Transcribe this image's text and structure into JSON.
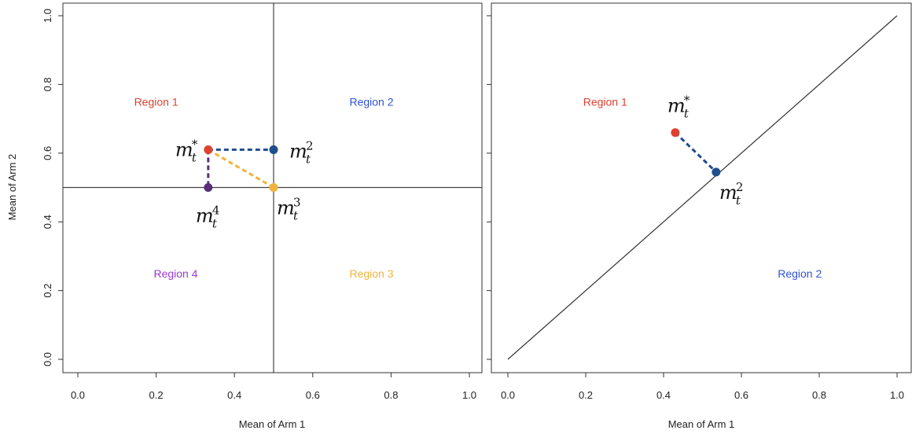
{
  "colors": {
    "red": "#e0402f",
    "blue": "#1f4e8c",
    "gold": "#f0b43c",
    "purple": "#5a2e78",
    "region1": "#e0402f",
    "region2": "#2f52d6",
    "region3": "#f0b43c",
    "region4": "#9b3bd6",
    "axis": "#333333"
  },
  "chart_data": [
    {
      "type": "scatter",
      "xlabel": "Mean of Arm 1",
      "ylabel": "Mean of Arm 2",
      "xlim": [
        0,
        1
      ],
      "ylim": [
        0,
        1
      ],
      "xticks": [
        "0.0",
        "0.2",
        "0.4",
        "0.6",
        "0.8",
        "1.0"
      ],
      "yticks": [
        "0.0",
        "0.2",
        "0.4",
        "0.6",
        "0.8",
        "1.0"
      ],
      "boundaries": [
        {
          "kind": "vline",
          "x": 0.5
        },
        {
          "kind": "hline",
          "y": 0.5
        }
      ],
      "regions": [
        {
          "label": "Region 1",
          "x": 0.2,
          "y": 0.75,
          "color": "region1"
        },
        {
          "label": "Region 2",
          "x": 0.75,
          "y": 0.75,
          "color": "region2"
        },
        {
          "label": "Region 4",
          "x": 0.25,
          "y": 0.25,
          "color": "region4"
        },
        {
          "label": "Region 3",
          "x": 0.75,
          "y": 0.25,
          "color": "region3"
        }
      ],
      "points": [
        {
          "id": "m_star",
          "x": 0.333,
          "y": 0.61,
          "color": "red",
          "sup": "*",
          "labelPos": "left"
        },
        {
          "id": "m2",
          "x": 0.5,
          "y": 0.61,
          "color": "blue",
          "sup": "2",
          "labelPos": "right"
        },
        {
          "id": "m3",
          "x": 0.5,
          "y": 0.5,
          "color": "gold",
          "sup": "3",
          "labelPos": "below-right"
        },
        {
          "id": "m4",
          "x": 0.333,
          "y": 0.5,
          "color": "purple",
          "sup": "4",
          "labelPos": "below"
        }
      ],
      "segments": [
        {
          "from": "m_star",
          "to": "m2",
          "color": "blue"
        },
        {
          "from": "m_star",
          "to": "m3",
          "color": "gold"
        },
        {
          "from": "m_star",
          "to": "m4",
          "color": "purple"
        }
      ]
    },
    {
      "type": "scatter",
      "xlabel": "Mean of Arm 1",
      "ylabel": "",
      "xlim": [
        0,
        1
      ],
      "ylim": [
        0,
        1
      ],
      "xticks": [
        "0.0",
        "0.2",
        "0.4",
        "0.6",
        "0.8",
        "1.0"
      ],
      "boundaries": [
        {
          "kind": "diag",
          "x1": 0,
          "y1": 0,
          "x2": 1,
          "y2": 1
        }
      ],
      "regions": [
        {
          "label": "Region 1",
          "x": 0.25,
          "y": 0.75,
          "color": "region1"
        },
        {
          "label": "Region 2",
          "x": 0.75,
          "y": 0.25,
          "color": "region2"
        }
      ],
      "points": [
        {
          "id": "m_star",
          "x": 0.43,
          "y": 0.66,
          "color": "red",
          "sup": "*",
          "labelPos": "above"
        },
        {
          "id": "m2",
          "x": 0.535,
          "y": 0.545,
          "color": "blue",
          "sup": "2",
          "labelPos": "below-right"
        }
      ],
      "segments": [
        {
          "from": "m_star",
          "to": "m2",
          "color": "blue"
        }
      ]
    }
  ],
  "point_label": {
    "base": "m",
    "sub": "t"
  }
}
